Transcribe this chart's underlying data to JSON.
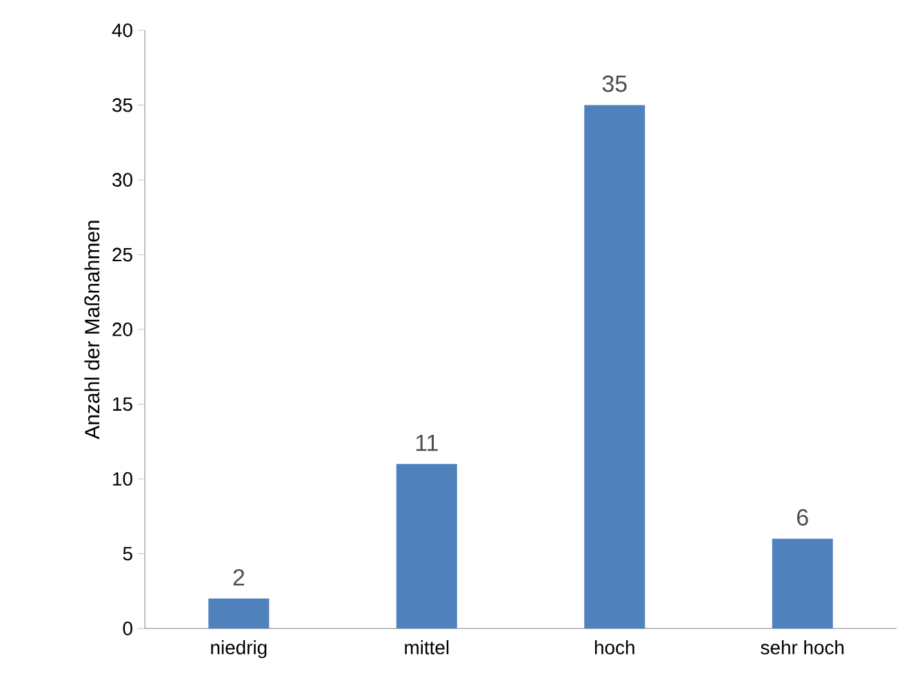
{
  "chart_data": {
    "type": "bar",
    "ylabel": "Anzahl der Maßnahmen",
    "categories": [
      "niedrig",
      "mittel",
      "hoch",
      "sehr hoch"
    ],
    "values": [
      2,
      11,
      35,
      6
    ],
    "color": "#4f81bd",
    "ylim": [
      0,
      40
    ],
    "yticks": [
      0,
      5,
      10,
      15,
      20,
      25,
      30,
      35,
      40
    ],
    "data_labels": true,
    "grid": false
  }
}
